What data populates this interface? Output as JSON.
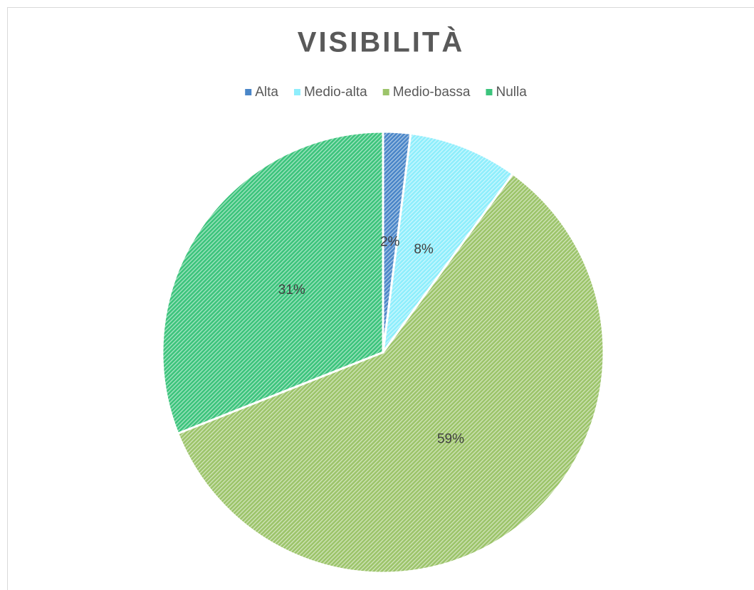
{
  "chart_data": {
    "type": "pie",
    "title": "VISIBILITÀ",
    "categories": [
      "Alta",
      "Medio-alta",
      "Medio-bassa",
      "Nulla"
    ],
    "values": [
      2,
      8,
      59,
      31
    ],
    "value_labels": [
      "2%",
      "8%",
      "59%",
      "31%"
    ],
    "colors": [
      "#4a86c8",
      "#8eeefc",
      "#9cc46a",
      "#3cc47c"
    ],
    "legend": "top"
  }
}
